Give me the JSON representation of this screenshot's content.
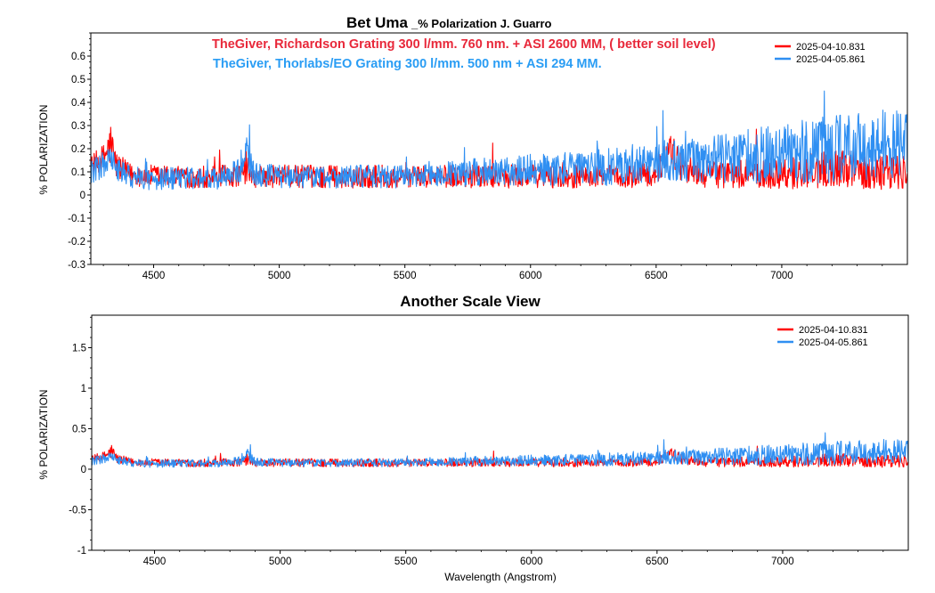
{
  "chart_data": [
    {
      "type": "line",
      "title": "Bet Uma",
      "title_suffix": "_% Polarization  J. Guarro",
      "xlabel": "",
      "ylabel": "% POLARIZATION",
      "xlim": [
        4250,
        7500
      ],
      "ylim": [
        -0.3,
        0.7
      ],
      "xticks": [
        4500,
        5000,
        5500,
        6000,
        6500,
        7000
      ],
      "yticks": [
        -0.3,
        -0.2,
        -0.1,
        0,
        0.1,
        0.2,
        0.3,
        0.4,
        0.5,
        0.6
      ],
      "grid": false,
      "legend_position": "top-right",
      "annotations": [
        {
          "text": "TheGiver, Richardson  Grating  300 l/mm. 760 nm. + ASI 2600 MM, ( better soil level)",
          "color": "#e8283a"
        },
        {
          "text": "TheGiver, Thorlabs/EO  Grating  300 l/mm.   500 nm  + ASI 294 MM.",
          "color": "#2a9df4"
        }
      ],
      "series": [
        {
          "name": "2025-04-10.831",
          "color": "#ff0000",
          "x": [
            4250,
            4300,
            4330,
            4350,
            4400,
            4500,
            4600,
            4700,
            4800,
            4850,
            4870,
            4900,
            5000,
            5100,
            5200,
            5300,
            5400,
            5500,
            5600,
            5700,
            5800,
            5900,
            6000,
            6100,
            6200,
            6300,
            6400,
            6500,
            6540,
            6560,
            6600,
            6700,
            6800,
            6900,
            7000,
            7100,
            7200,
            7300,
            7400,
            7500
          ],
          "y": [
            0.12,
            0.16,
            0.22,
            0.13,
            0.09,
            0.08,
            0.08,
            0.08,
            0.08,
            0.09,
            0.11,
            0.08,
            0.08,
            0.08,
            0.08,
            0.08,
            0.08,
            0.08,
            0.08,
            0.08,
            0.08,
            0.08,
            0.08,
            0.08,
            0.08,
            0.08,
            0.08,
            0.09,
            0.18,
            0.2,
            0.12,
            0.09,
            0.09,
            0.09,
            0.1,
            0.1,
            0.12,
            0.11,
            0.1,
            0.1
          ],
          "noise": [
            0.05,
            0.06,
            0.1,
            0.06,
            0.05,
            0.05,
            0.05,
            0.05,
            0.05,
            0.05,
            0.06,
            0.05,
            0.05,
            0.05,
            0.05,
            0.05,
            0.05,
            0.05,
            0.05,
            0.05,
            0.05,
            0.05,
            0.05,
            0.05,
            0.05,
            0.05,
            0.05,
            0.05,
            0.07,
            0.07,
            0.06,
            0.06,
            0.06,
            0.07,
            0.07,
            0.08,
            0.08,
            0.08,
            0.08,
            0.08
          ]
        },
        {
          "name": "2025-04-05.861",
          "color": "#2f8ff2",
          "x": [
            4250,
            4300,
            4330,
            4350,
            4400,
            4500,
            4600,
            4700,
            4800,
            4850,
            4870,
            4900,
            5000,
            5100,
            5200,
            5300,
            5400,
            5500,
            5600,
            5700,
            5800,
            5900,
            6000,
            6100,
            6200,
            6300,
            6400,
            6500,
            6540,
            6560,
            6600,
            6700,
            6800,
            6900,
            7000,
            7100,
            7200,
            7300,
            7400,
            7500
          ],
          "y": [
            0.1,
            0.13,
            0.15,
            0.11,
            0.08,
            0.07,
            0.07,
            0.07,
            0.08,
            0.12,
            0.18,
            0.09,
            0.08,
            0.08,
            0.08,
            0.08,
            0.08,
            0.08,
            0.09,
            0.09,
            0.1,
            0.1,
            0.11,
            0.11,
            0.12,
            0.12,
            0.13,
            0.14,
            0.16,
            0.15,
            0.15,
            0.16,
            0.16,
            0.17,
            0.18,
            0.19,
            0.2,
            0.21,
            0.22,
            0.22
          ],
          "noise": [
            0.05,
            0.06,
            0.07,
            0.05,
            0.05,
            0.05,
            0.05,
            0.05,
            0.05,
            0.06,
            0.07,
            0.05,
            0.05,
            0.05,
            0.05,
            0.05,
            0.05,
            0.05,
            0.05,
            0.06,
            0.06,
            0.06,
            0.07,
            0.07,
            0.07,
            0.08,
            0.08,
            0.09,
            0.09,
            0.09,
            0.1,
            0.1,
            0.11,
            0.12,
            0.13,
            0.14,
            0.15,
            0.15,
            0.15,
            0.15
          ]
        }
      ]
    },
    {
      "type": "line",
      "title": "Another   Scale   View",
      "xlabel": "Wavelength (Angstrom)",
      "ylabel": "% POLARIZATION",
      "xlim": [
        4250,
        7500
      ],
      "ylim": [
        -1,
        1.9
      ],
      "xticks": [
        4500,
        5000,
        5500,
        6000,
        6500,
        7000
      ],
      "yticks": [
        -1,
        -0.5,
        0,
        0.5,
        1,
        1.5
      ],
      "grid": false,
      "legend_position": "top-right",
      "same_series_as_chart": 0
    }
  ]
}
